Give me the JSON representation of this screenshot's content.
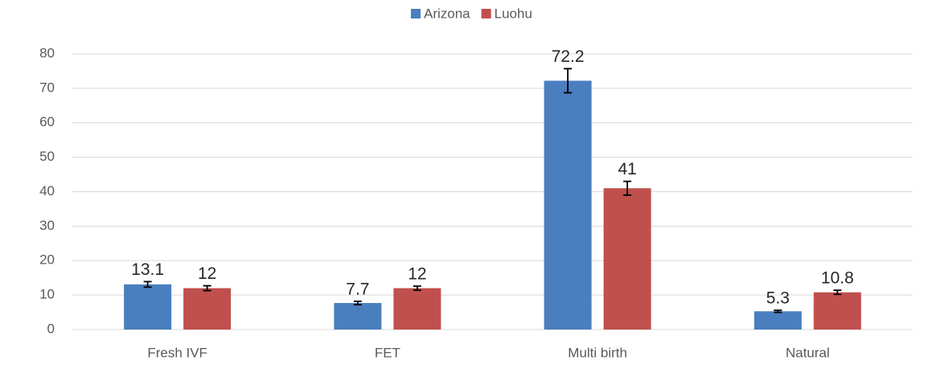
{
  "chart_data": {
    "type": "bar",
    "categories": [
      "Fresh IVF",
      "FET",
      "Multi birth",
      "Natural"
    ],
    "series": [
      {
        "name": "Arizona",
        "color": "#4a7ebf",
        "values": [
          13.1,
          7.7,
          72.2,
          5.3
        ],
        "errors": [
          0.8,
          0.5,
          3.5,
          0.3
        ]
      },
      {
        "name": "Luohu",
        "color": "#c0504d",
        "values": [
          12,
          12,
          41,
          10.8
        ],
        "errors": [
          0.7,
          0.6,
          2.0,
          0.6
        ]
      }
    ],
    "ylim": [
      0,
      80
    ],
    "yticks": [
      0,
      10,
      20,
      30,
      40,
      50,
      60,
      70,
      80
    ],
    "grid": true,
    "legend": "top"
  }
}
